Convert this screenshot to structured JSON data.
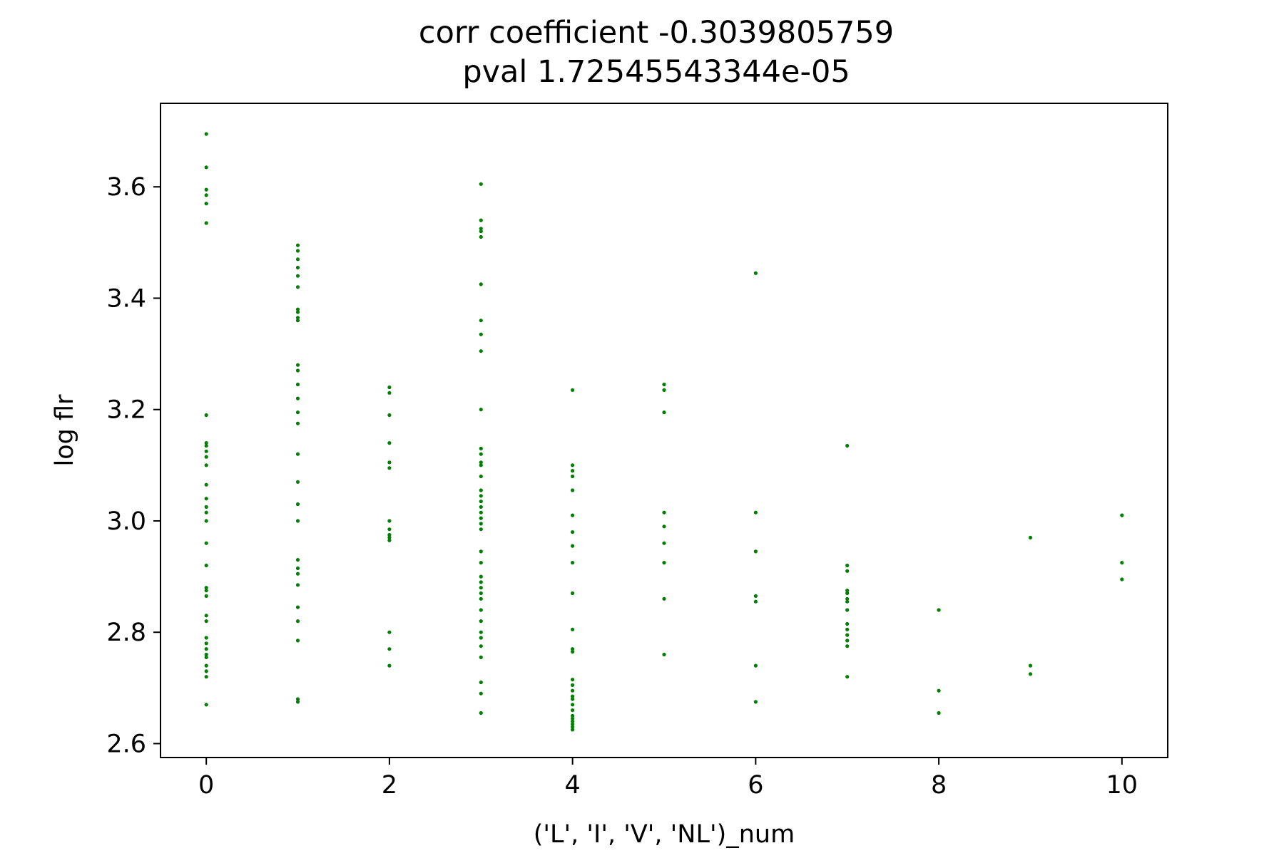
{
  "chart_data": {
    "type": "scatter",
    "title": [
      "corr coefficient -0.3039805759",
      "pval 1.72545543344e-05"
    ],
    "xlabel": "('L', 'I', 'V', 'NL')_num",
    "ylabel": "log flr",
    "xlim": [
      -0.5,
      10.5
    ],
    "ylim": [
      2.575,
      3.75
    ],
    "xticks": [
      0,
      2,
      4,
      6,
      8,
      10
    ],
    "yticks": [
      2.6,
      2.8,
      3.0,
      3.2,
      3.4,
      3.6
    ],
    "xtick_labels": [
      "0",
      "2",
      "4",
      "6",
      "8",
      "10"
    ],
    "ytick_labels": [
      "2.6",
      "2.8",
      "3.0",
      "3.2",
      "3.4",
      "3.6"
    ],
    "grid": false,
    "marker_color": "#008000",
    "series": [
      {
        "points": [
          [
            0,
            3.695
          ],
          [
            0,
            3.635
          ],
          [
            0,
            3.595
          ],
          [
            0,
            3.585
          ],
          [
            0,
            3.57
          ],
          [
            0,
            3.535
          ],
          [
            0,
            3.19
          ],
          [
            0,
            3.14
          ],
          [
            0,
            3.135
          ],
          [
            0,
            3.125
          ],
          [
            0,
            3.115
          ],
          [
            0,
            3.1
          ],
          [
            0,
            3.065
          ],
          [
            0,
            3.04
          ],
          [
            0,
            3.025
          ],
          [
            0,
            3.015
          ],
          [
            0,
            3.0
          ],
          [
            0,
            2.96
          ],
          [
            0,
            2.92
          ],
          [
            0,
            2.88
          ],
          [
            0,
            2.875
          ],
          [
            0,
            2.865
          ],
          [
            0,
            2.83
          ],
          [
            0,
            2.82
          ],
          [
            0,
            2.79
          ],
          [
            0,
            2.78
          ],
          [
            0,
            2.77
          ],
          [
            0,
            2.76
          ],
          [
            0,
            2.755
          ],
          [
            0,
            2.74
          ],
          [
            0,
            2.73
          ],
          [
            0,
            2.72
          ],
          [
            0,
            2.67
          ],
          [
            1,
            3.495
          ],
          [
            1,
            3.485
          ],
          [
            1,
            3.47
          ],
          [
            1,
            3.455
          ],
          [
            1,
            3.44
          ],
          [
            1,
            3.42
          ],
          [
            1,
            3.38
          ],
          [
            1,
            3.375
          ],
          [
            1,
            3.365
          ],
          [
            1,
            3.36
          ],
          [
            1,
            3.28
          ],
          [
            1,
            3.27
          ],
          [
            1,
            3.245
          ],
          [
            1,
            3.22
          ],
          [
            1,
            3.195
          ],
          [
            1,
            3.175
          ],
          [
            1,
            3.12
          ],
          [
            1,
            3.07
          ],
          [
            1,
            3.03
          ],
          [
            1,
            3.0
          ],
          [
            1,
            2.93
          ],
          [
            1,
            2.915
          ],
          [
            1,
            2.905
          ],
          [
            1,
            2.885
          ],
          [
            1,
            2.845
          ],
          [
            1,
            2.82
          ],
          [
            1,
            2.785
          ],
          [
            1,
            2.68
          ],
          [
            1,
            2.675
          ],
          [
            2,
            3.24
          ],
          [
            2,
            3.23
          ],
          [
            2,
            3.19
          ],
          [
            2,
            3.14
          ],
          [
            2,
            3.105
          ],
          [
            2,
            3.095
          ],
          [
            2,
            3.0
          ],
          [
            2,
            2.985
          ],
          [
            2,
            2.975
          ],
          [
            2,
            2.97
          ],
          [
            2,
            2.965
          ],
          [
            2,
            2.8
          ],
          [
            2,
            2.77
          ],
          [
            2,
            2.74
          ],
          [
            3,
            3.605
          ],
          [
            3,
            3.54
          ],
          [
            3,
            3.525
          ],
          [
            3,
            3.52
          ],
          [
            3,
            3.51
          ],
          [
            3,
            3.425
          ],
          [
            3,
            3.36
          ],
          [
            3,
            3.335
          ],
          [
            3,
            3.305
          ],
          [
            3,
            3.2
          ],
          [
            3,
            3.13
          ],
          [
            3,
            3.12
          ],
          [
            3,
            3.105
          ],
          [
            3,
            3.1
          ],
          [
            3,
            3.08
          ],
          [
            3,
            3.055
          ],
          [
            3,
            3.045
          ],
          [
            3,
            3.035
          ],
          [
            3,
            3.025
          ],
          [
            3,
            3.015
          ],
          [
            3,
            3.005
          ],
          [
            3,
            2.995
          ],
          [
            3,
            2.985
          ],
          [
            3,
            2.945
          ],
          [
            3,
            2.925
          ],
          [
            3,
            2.9
          ],
          [
            3,
            2.89
          ],
          [
            3,
            2.88
          ],
          [
            3,
            2.87
          ],
          [
            3,
            2.86
          ],
          [
            3,
            2.84
          ],
          [
            3,
            2.82
          ],
          [
            3,
            2.8
          ],
          [
            3,
            2.79
          ],
          [
            3,
            2.775
          ],
          [
            3,
            2.755
          ],
          [
            3,
            2.71
          ],
          [
            3,
            2.69
          ],
          [
            3,
            2.655
          ],
          [
            4,
            3.235
          ],
          [
            4,
            3.1
          ],
          [
            4,
            3.09
          ],
          [
            4,
            3.08
          ],
          [
            4,
            3.055
          ],
          [
            4,
            3.01
          ],
          [
            4,
            2.98
          ],
          [
            4,
            2.955
          ],
          [
            4,
            2.925
          ],
          [
            4,
            2.87
          ],
          [
            4,
            2.805
          ],
          [
            4,
            2.77
          ],
          [
            4,
            2.765
          ],
          [
            4,
            2.715
          ],
          [
            4,
            2.705
          ],
          [
            4,
            2.695
          ],
          [
            4,
            2.685
          ],
          [
            4,
            2.68
          ],
          [
            4,
            2.67
          ],
          [
            4,
            2.66
          ],
          [
            4,
            2.65
          ],
          [
            4,
            2.645
          ],
          [
            4,
            2.64
          ],
          [
            4,
            2.635
          ],
          [
            4,
            2.63
          ],
          [
            4,
            2.625
          ],
          [
            5,
            3.245
          ],
          [
            5,
            3.235
          ],
          [
            5,
            3.195
          ],
          [
            5,
            3.015
          ],
          [
            5,
            2.99
          ],
          [
            5,
            2.96
          ],
          [
            5,
            2.925
          ],
          [
            5,
            2.86
          ],
          [
            5,
            2.76
          ],
          [
            6,
            3.445
          ],
          [
            6,
            3.015
          ],
          [
            6,
            2.945
          ],
          [
            6,
            2.865
          ],
          [
            6,
            2.855
          ],
          [
            6,
            2.74
          ],
          [
            6,
            2.675
          ],
          [
            7,
            3.135
          ],
          [
            7,
            2.92
          ],
          [
            7,
            2.91
          ],
          [
            7,
            2.875
          ],
          [
            7,
            2.87
          ],
          [
            7,
            2.86
          ],
          [
            7,
            2.855
          ],
          [
            7,
            2.84
          ],
          [
            7,
            2.815
          ],
          [
            7,
            2.805
          ],
          [
            7,
            2.795
          ],
          [
            7,
            2.785
          ],
          [
            7,
            2.775
          ],
          [
            7,
            2.72
          ],
          [
            8,
            2.84
          ],
          [
            8,
            2.695
          ],
          [
            8,
            2.655
          ],
          [
            9,
            2.97
          ],
          [
            9,
            2.74
          ],
          [
            9,
            2.725
          ],
          [
            10,
            3.01
          ],
          [
            10,
            2.925
          ],
          [
            10,
            2.895
          ]
        ]
      }
    ]
  }
}
